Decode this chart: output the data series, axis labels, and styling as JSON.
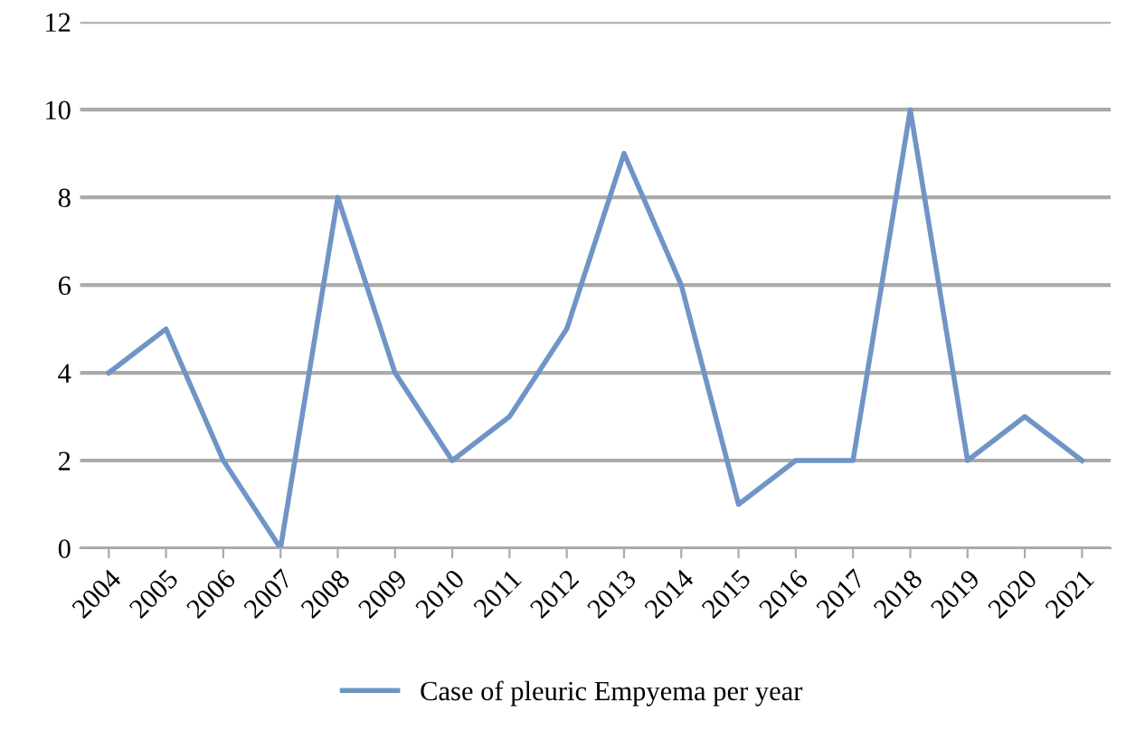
{
  "chart_data": {
    "type": "line",
    "categories": [
      "2004",
      "2005",
      "2006",
      "2007",
      "2008",
      "2009",
      "2010",
      "2011",
      "2012",
      "2013",
      "2014",
      "2015",
      "2016",
      "2017",
      "2018",
      "2019",
      "2020",
      "2021"
    ],
    "series": [
      {
        "name": "Case of pleuric Empyema per year",
        "color": "#6f95c6",
        "values": [
          4,
          5,
          2,
          0,
          8,
          4,
          2,
          3,
          5,
          9,
          6,
          1,
          2,
          2,
          10,
          2,
          3,
          2
        ]
      }
    ],
    "ylim": [
      0,
      12
    ],
    "yticks": [
      0,
      2,
      4,
      6,
      8,
      10,
      12
    ],
    "grid": "y",
    "legend": "bottom",
    "marker": "none",
    "line_style": "solid"
  }
}
